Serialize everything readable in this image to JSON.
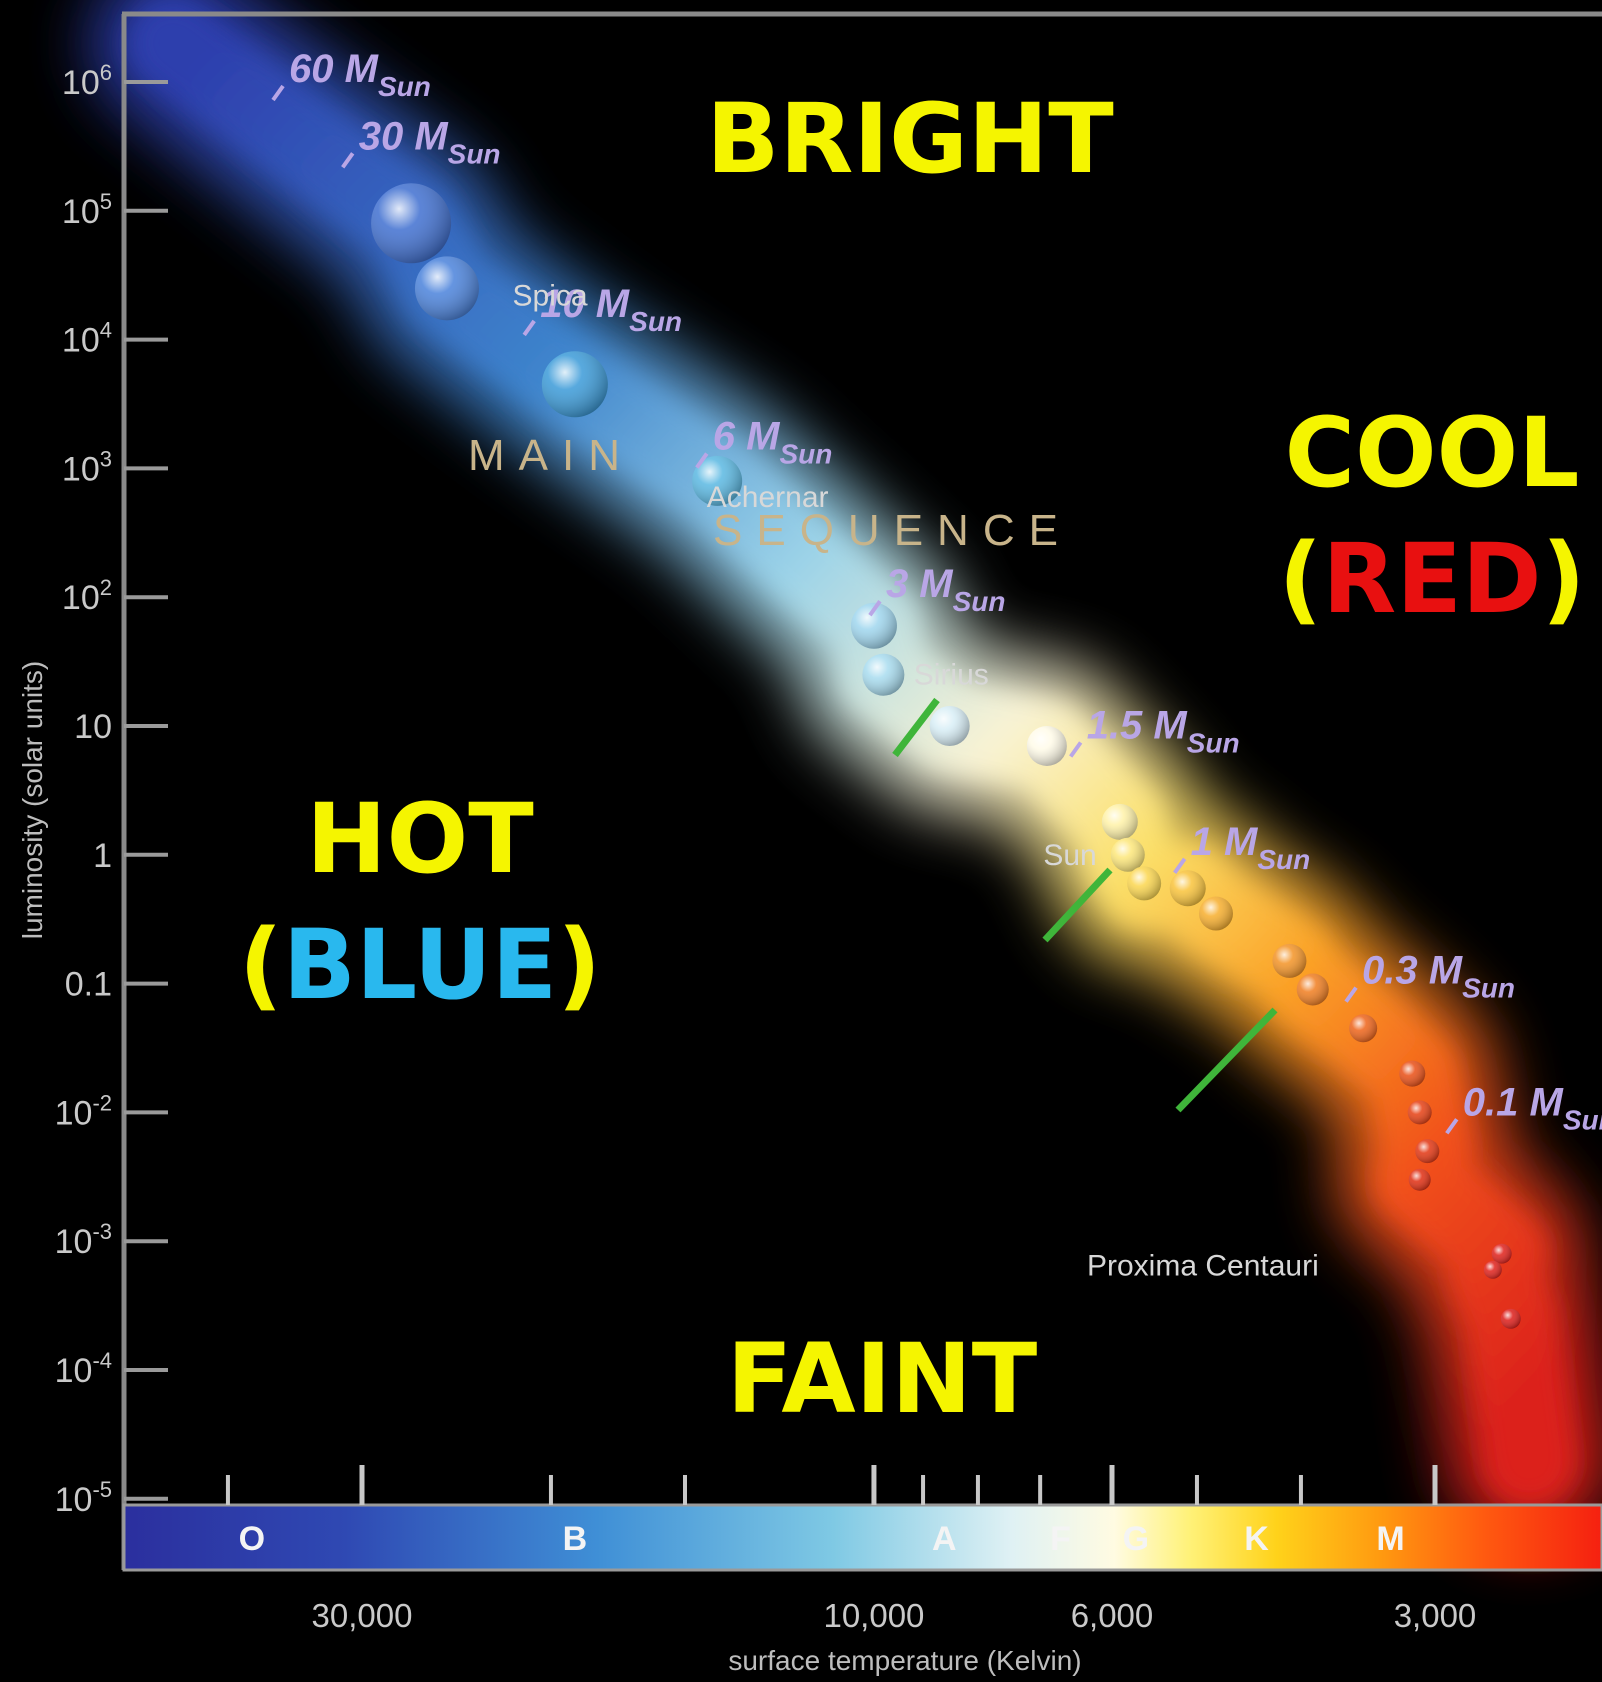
{
  "chart_data": {
    "type": "scatter",
    "xlabel": "surface temperature (Kelvin)",
    "ylabel": "luminosity (solar units)",
    "x_scale": "log",
    "x_reversed": true,
    "y_scale": "log",
    "xlim": [
      45000,
      2200
    ],
    "ylim": [
      1e-05,
      1000000
    ],
    "y_ticks": [
      {
        "value": 1000000,
        "base": "10",
        "exp": "6"
      },
      {
        "value": 100000,
        "base": "10",
        "exp": "5"
      },
      {
        "value": 10000,
        "base": "10",
        "exp": "4"
      },
      {
        "value": 1000,
        "base": "10",
        "exp": "3"
      },
      {
        "value": 100,
        "base": "10",
        "exp": "2"
      },
      {
        "value": 10,
        "base": "10",
        "exp": ""
      },
      {
        "value": 1,
        "base": "1",
        "exp": ""
      },
      {
        "value": 0.1,
        "base": "0.1",
        "exp": ""
      },
      {
        "value": 0.01,
        "base": "10",
        "exp": "-2"
      },
      {
        "value": 0.001,
        "base": "10",
        "exp": "-3"
      },
      {
        "value": 0.0001,
        "base": "10",
        "exp": "-4"
      },
      {
        "value": 1e-05,
        "base": "10",
        "exp": "-5"
      }
    ],
    "x_ticks": [
      {
        "value": 30000,
        "label": "30,000"
      },
      {
        "value": 10000,
        "label": "10,000"
      },
      {
        "value": 6000,
        "label": "6,000"
      },
      {
        "value": 3000,
        "label": "3,000"
      }
    ],
    "x_minor_ticks": [
      40000,
      20000,
      15000,
      9000,
      8000,
      7000,
      5000,
      4000
    ],
    "spectral_classes": [
      {
        "label": "O",
        "temp": 38000
      },
      {
        "label": "B",
        "temp": 19000
      },
      {
        "label": "A",
        "temp": 8600
      },
      {
        "label": "F",
        "temp": 6700
      },
      {
        "label": "G",
        "temp": 5700
      },
      {
        "label": "K",
        "temp": 4400
      },
      {
        "label": "M",
        "temp": 3300
      }
    ],
    "main_sequence_stars": [
      {
        "temp": 27000,
        "lum": 80000,
        "r": 40,
        "color": "#3f6fd0"
      },
      {
        "temp": 25000,
        "lum": 25000,
        "r": 32,
        "color": "#4a82db"
      },
      {
        "temp": 19000,
        "lum": 4500,
        "r": 33,
        "color": "#3a9ad8"
      },
      {
        "temp": 14000,
        "lum": 800,
        "r": 25,
        "color": "#5ab8e2"
      },
      {
        "temp": 10000,
        "lum": 60,
        "r": 23,
        "color": "#9fd6ee"
      },
      {
        "temp": 9800,
        "lum": 25,
        "r": 21,
        "color": "#a8dcef"
      },
      {
        "temp": 8500,
        "lum": 10,
        "r": 20,
        "color": "#d8eef6"
      },
      {
        "temp": 6900,
        "lum": 7,
        "r": 20,
        "color": "#fffbe8"
      },
      {
        "temp": 5900,
        "lum": 1.8,
        "r": 18,
        "color": "#fff2a8"
      },
      {
        "temp": 5800,
        "lum": 1,
        "r": 17,
        "color": "#fde77a"
      },
      {
        "temp": 5600,
        "lum": 0.6,
        "r": 17,
        "color": "#fbd64e"
      },
      {
        "temp": 5100,
        "lum": 0.55,
        "r": 18,
        "color": "#f9c33a"
      },
      {
        "temp": 4800,
        "lum": 0.35,
        "r": 17,
        "color": "#f7ae2c"
      },
      {
        "temp": 4100,
        "lum": 0.15,
        "r": 17,
        "color": "#f39325"
      },
      {
        "temp": 3900,
        "lum": 0.09,
        "r": 16,
        "color": "#f07d1f"
      },
      {
        "temp": 3500,
        "lum": 0.045,
        "r": 14,
        "color": "#ee6318"
      },
      {
        "temp": 3150,
        "lum": 0.02,
        "r": 13,
        "color": "#e94e14"
      },
      {
        "temp": 3100,
        "lum": 0.01,
        "r": 12,
        "color": "#e63f12"
      },
      {
        "temp": 3050,
        "lum": 0.005,
        "r": 12,
        "color": "#e23511"
      },
      {
        "temp": 3100,
        "lum": 0.003,
        "r": 11,
        "color": "#e02d10"
      },
      {
        "temp": 2600,
        "lum": 0.0008,
        "r": 10,
        "color": "#e0201a"
      },
      {
        "temp": 2650,
        "lum": 0.0006,
        "r": 9,
        "color": "#e0201a"
      },
      {
        "temp": 2550,
        "lum": 0.00025,
        "r": 10,
        "color": "#dd1c18"
      }
    ],
    "mass_labels": [
      {
        "value": "60",
        "temp": 36000,
        "lum": 1000000
      },
      {
        "value": "30",
        "temp": 31000,
        "lum": 300000
      },
      {
        "value": "10",
        "temp": 21000,
        "lum": 15000
      },
      {
        "value": "6",
        "temp": 14500,
        "lum": 1400
      },
      {
        "value": "3",
        "temp": 10000,
        "lum": 100
      },
      {
        "value": "1.5",
        "temp": 6500,
        "lum": 8
      },
      {
        "value": "1",
        "temp": 5200,
        "lum": 1
      },
      {
        "value": "0.3",
        "temp": 3600,
        "lum": 0.1
      },
      {
        "value": "0.1",
        "temp": 2900,
        "lum": 0.0095
      }
    ],
    "mass_unit": "M",
    "mass_subscript": "Sun",
    "named_stars": [
      {
        "name": "Spica",
        "temp": 22000,
        "lum": 22000
      },
      {
        "name": "Achernar",
        "temp": 14500,
        "lum": 600
      },
      {
        "name": "Sirius",
        "temp": 9300,
        "lum": 25
      },
      {
        "name": "Sun",
        "temp": 6200,
        "lum": 1
      },
      {
        "name": "Proxima Centauri",
        "temp": 3850,
        "lum": 0.00065
      }
    ],
    "sequence_label": {
      "line1": "MAIN",
      "line2": "SEQUENCE"
    },
    "region_labels": {
      "bright": "BRIGHT",
      "faint": "FAINT",
      "hot": "HOT",
      "hot_open": "(",
      "hot_color": "BLUE",
      "hot_close": ")",
      "cool": "COOL",
      "cool_open": "(",
      "cool_color": "RED",
      "cool_close": ")"
    },
    "colors": {
      "region_text": "#f5f500",
      "blue_word": "#29b8ee",
      "red_word": "#e81010",
      "frame": "#8a8a8a",
      "divider_green": "#3fb53a"
    }
  }
}
